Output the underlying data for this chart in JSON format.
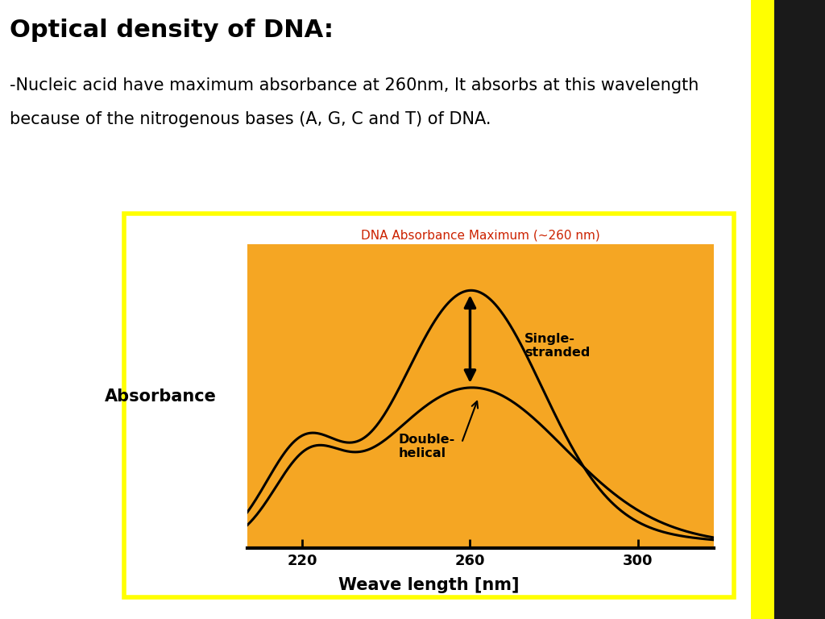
{
  "title": "Optical density of DNA:",
  "subtitle_line1": "-Nucleic acid have maximum absorbance at 260nm, It absorbs at this wavelength",
  "subtitle_line2": "because of the nitrogenous bases (A, G, C and T) of DNA.",
  "chart_title": "DNA Absorbance Maximum (~260 nm)",
  "chart_title_color": "#cc2200",
  "xlabel": "Weave length [nm]",
  "ylabel": "Absorbance",
  "bg_color": "#f5a623",
  "border_color": "#ffff00",
  "xticks": [
    220,
    260,
    300
  ],
  "xmin": 210,
  "xmax": 315,
  "right_stripe_color": "#1a1a1a",
  "right_yellow_color": "#ffff00",
  "label_single": "Single-\nstranded",
  "label_double": "Double-\nhelical"
}
